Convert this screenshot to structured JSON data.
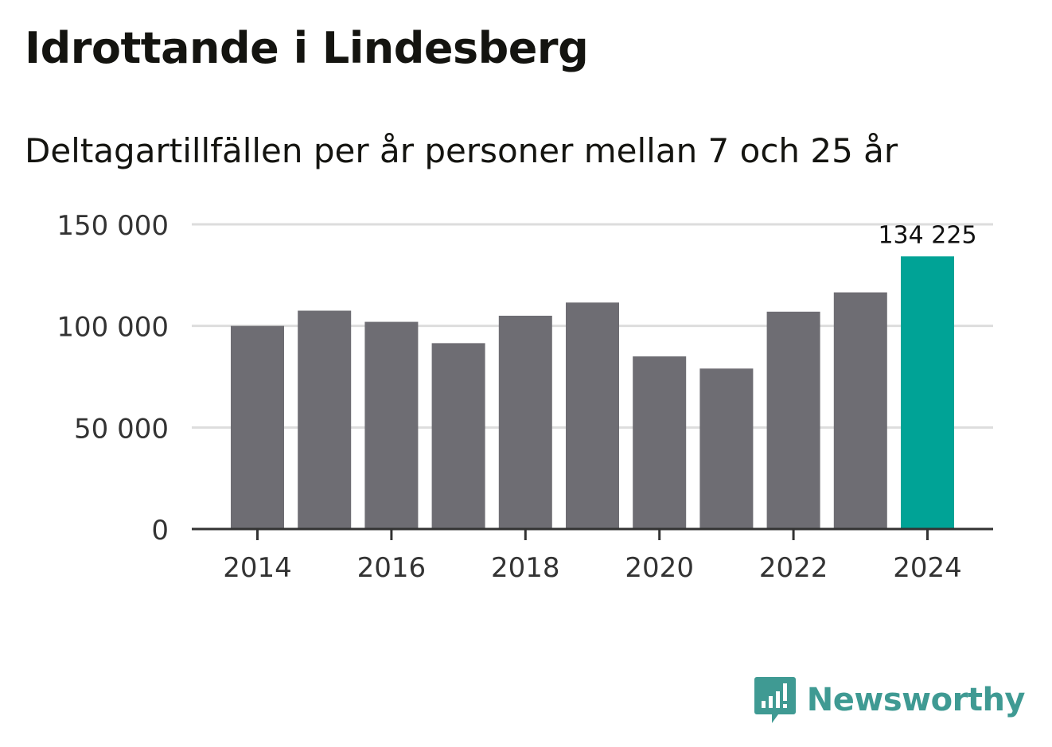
{
  "title": "Idrottande i Lindesberg",
  "subtitle": "Deltagartillfällen per år personer mellan 7 och 25 år",
  "brand": {
    "name": "Newsworthy",
    "color": "#3f9a93"
  },
  "colors": {
    "bar": "#6e6d73",
    "highlight": "#00a396",
    "grid": "#dddddd",
    "axis": "#333333",
    "tick_text": "#333333"
  },
  "chart_data": {
    "type": "bar",
    "title": "Idrottande i Lindesberg",
    "subtitle": "Deltagartillfällen per år personer mellan 7 och 25 år",
    "xlabel": "",
    "ylabel": "",
    "categories": [
      "2014",
      "2015",
      "2016",
      "2017",
      "2018",
      "2019",
      "2020",
      "2021",
      "2022",
      "2023",
      "2024"
    ],
    "values": [
      100000,
      107500,
      102000,
      91500,
      105000,
      111500,
      85000,
      79000,
      107000,
      116500,
      134225
    ],
    "highlight_index": 10,
    "highlight_label": "134 225",
    "x_tick_labels": [
      "2014",
      "2016",
      "2018",
      "2020",
      "2022",
      "2024"
    ],
    "y_ticks": [
      0,
      50000,
      100000,
      150000
    ],
    "y_tick_labels": [
      "0",
      "50 000",
      "100 000",
      "150 000"
    ],
    "ylim": [
      0,
      150000
    ],
    "grid": true
  }
}
